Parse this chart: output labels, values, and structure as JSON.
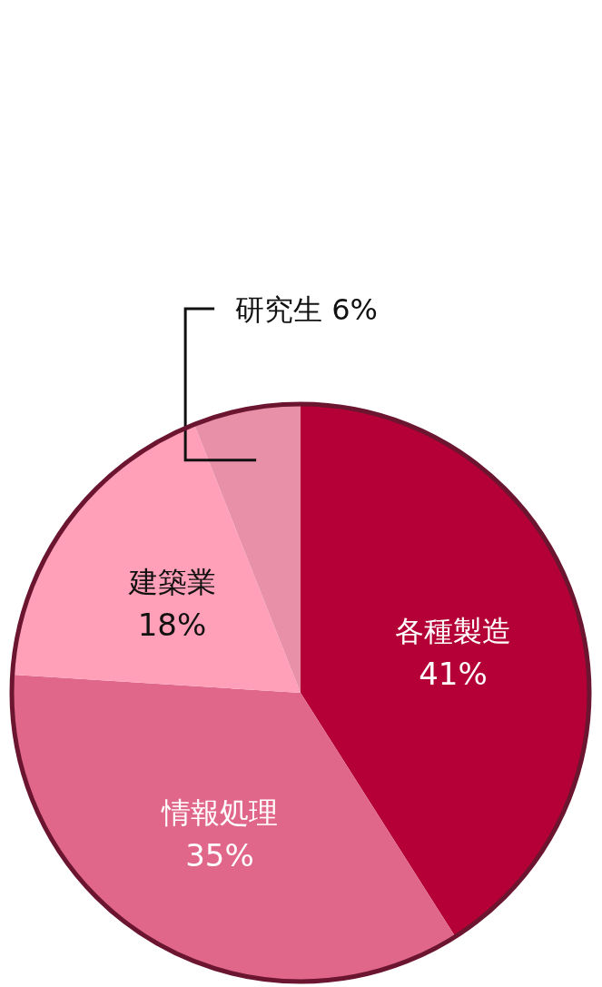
{
  "chart_data": {
    "type": "pie",
    "categories": [
      "各種製造",
      "情報処理",
      "建築業",
      "研究生"
    ],
    "values": [
      41,
      35,
      18,
      6
    ],
    "colors": [
      "#b40036",
      "#e0668a",
      "#ffa0b8",
      "#e890a8"
    ],
    "value_labels": [
      "41%",
      "35%",
      "18%",
      "6%"
    ]
  }
}
